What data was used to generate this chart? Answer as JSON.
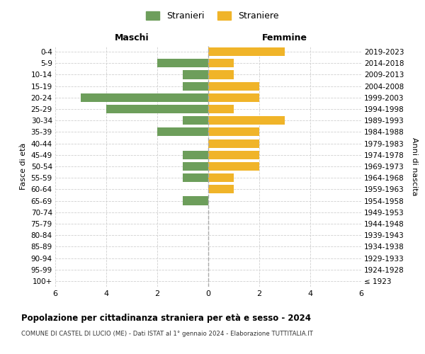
{
  "age_groups": [
    "100+",
    "95-99",
    "90-94",
    "85-89",
    "80-84",
    "75-79",
    "70-74",
    "65-69",
    "60-64",
    "55-59",
    "50-54",
    "45-49",
    "40-44",
    "35-39",
    "30-34",
    "25-29",
    "20-24",
    "15-19",
    "10-14",
    "5-9",
    "0-4"
  ],
  "birth_years": [
    "≤ 1923",
    "1924-1928",
    "1929-1933",
    "1934-1938",
    "1939-1943",
    "1944-1948",
    "1949-1953",
    "1954-1958",
    "1959-1963",
    "1964-1968",
    "1969-1973",
    "1974-1978",
    "1979-1983",
    "1984-1988",
    "1989-1993",
    "1994-1998",
    "1999-2003",
    "2004-2008",
    "2009-2013",
    "2014-2018",
    "2019-2023"
  ],
  "males": [
    0,
    0,
    0,
    0,
    0,
    0,
    0,
    1,
    0,
    1,
    1,
    1,
    0,
    2,
    1,
    4,
    5,
    1,
    1,
    2,
    0
  ],
  "females": [
    0,
    0,
    0,
    0,
    0,
    0,
    0,
    0,
    1,
    1,
    2,
    2,
    2,
    2,
    3,
    1,
    2,
    2,
    1,
    1,
    3
  ],
  "male_color": "#6d9e5b",
  "female_color": "#f0b429",
  "male_label": "Stranieri",
  "female_label": "Straniere",
  "title": "Popolazione per cittadinanza straniera per età e sesso - 2024",
  "subtitle": "COMUNE DI CASTEL DI LUCIO (ME) - Dati ISTAT al 1° gennaio 2024 - Elaborazione TUTTITALIA.IT",
  "xlabel_left": "Maschi",
  "xlabel_right": "Femmine",
  "ylabel_left": "Fasce di età",
  "ylabel_right": "Anni di nascita",
  "xlim": 6,
  "background_color": "#ffffff",
  "grid_color": "#d0d0d0",
  "center_line_color": "#aaaaaa"
}
